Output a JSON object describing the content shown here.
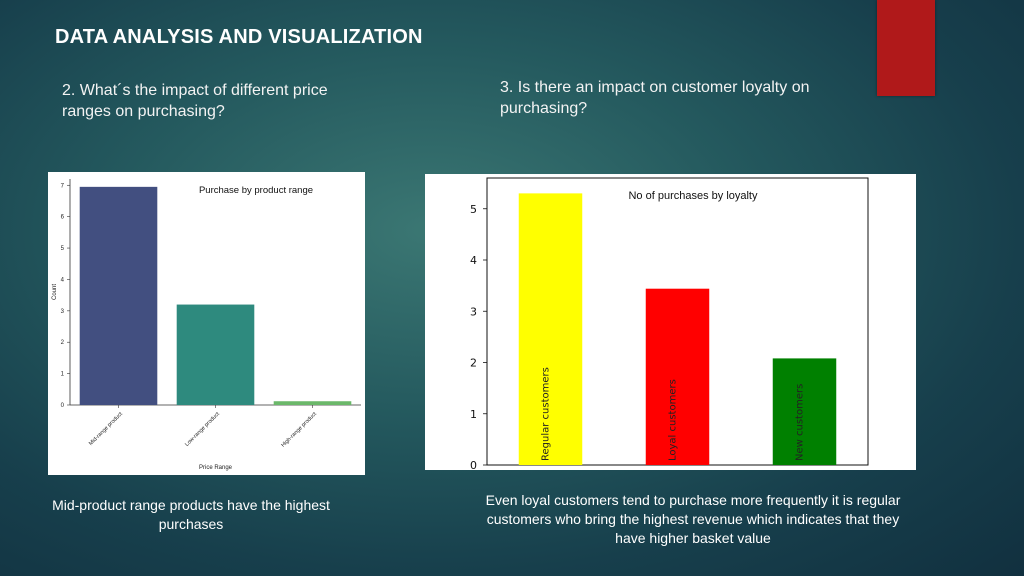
{
  "slide": {
    "title": "DATA ANALYSIS AND VISUALIZATION",
    "accent_color": "#b0191a",
    "question_price": "2. What´s the impact of different price ranges on purchasing?",
    "question_loyalty": "3. Is there an impact on customer loyalty on purchasing?",
    "caption_price": "Mid-product range products have the highest purchases",
    "caption_loyalty": "Even loyal customers tend to purchase more frequently it is regular customers who bring the highest revenue which indicates that they have higher basket value"
  },
  "chart_data": [
    {
      "type": "bar",
      "title": "Purchase by product range",
      "xlabel": "Price Range",
      "ylabel": "Count",
      "categories": [
        "Mid-range product",
        "Low-range product",
        "High-range product"
      ],
      "values": [
        6.95,
        3.2,
        0.12
      ],
      "colors": [
        "#424f80",
        "#2e8a7e",
        "#6bb86a"
      ],
      "ylim": [
        0,
        7.2
      ],
      "yticks": [
        0,
        1,
        2,
        3,
        4,
        5,
        6,
        7
      ],
      "grid": false,
      "legend": "none"
    },
    {
      "type": "bar",
      "title": "No of purchases by loyalty",
      "xlabel": "",
      "ylabel": "",
      "categories": [
        "Regular customers",
        "Loyal customers",
        "New customers"
      ],
      "values": [
        5.3,
        3.44,
        2.08
      ],
      "colors": [
        "#ffff00",
        "#ff0000",
        "#008000"
      ],
      "ylim": [
        0,
        5.6
      ],
      "yticks": [
        0,
        1,
        2,
        3,
        4,
        5
      ],
      "grid": false,
      "legend": "none"
    }
  ]
}
